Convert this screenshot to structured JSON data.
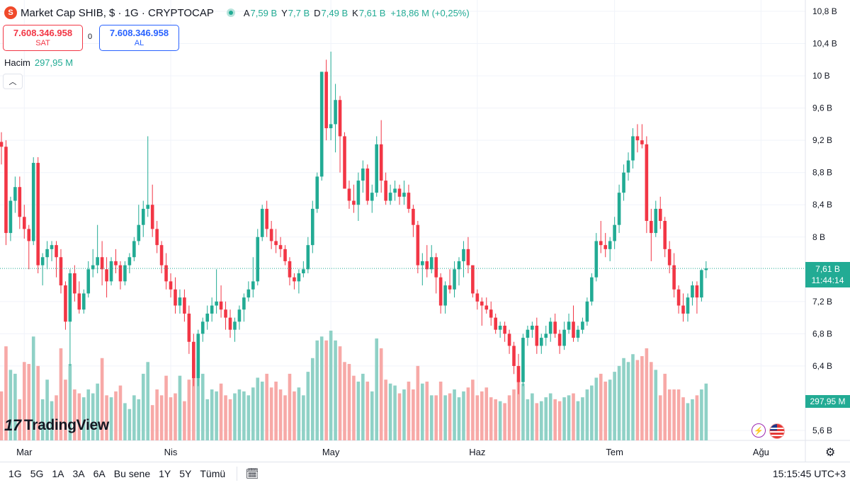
{
  "header": {
    "symbol_icon": "shiba-inu-icon",
    "title": "Market Cap SHIB, $ · 1G · CRYPTOCAP",
    "ohlc": [
      {
        "k": "A",
        "v": "7,59 B"
      },
      {
        "k": "Y",
        "v": "7,7 B"
      },
      {
        "k": "D",
        "v": "7,49 B"
      },
      {
        "k": "K",
        "v": "7,61 B"
      },
      {
        "k": "",
        "v": "+18,86 M (+0,25%)"
      }
    ]
  },
  "trade": {
    "sell_price": "7.608.346.958",
    "sell_label": "SAT",
    "spread": "0",
    "buy_price": "7.608.346.958",
    "buy_label": "AL"
  },
  "volume_legend": {
    "label": "Hacim",
    "value": "297,95 M"
  },
  "price_tag": {
    "price": "7,61 B",
    "countdown": "11:44:14"
  },
  "volume_tag": "297,95 M",
  "logo_text": "TradingView",
  "bottom_bar": {
    "ranges": [
      "1G",
      "5G",
      "1A",
      "3A",
      "6A",
      "Bu sene",
      "1Y",
      "5Y",
      "Tümü"
    ],
    "clock": "15:15:45 UTC+3"
  },
  "colors": {
    "up": "#22ab94",
    "down": "#f23645",
    "up_volume": "#8fd1c6",
    "down_volume": "#f7a9a7",
    "grid": "#f0f3fa"
  },
  "chart_data": {
    "type": "candlestick",
    "y_axis_labels": [
      "10,8 B",
      "10,4 B",
      "10 B",
      "9,6 B",
      "9,2 B",
      "8,8 B",
      "8,4 B",
      "8 B",
      "7,2 B",
      "6,8 B",
      "6,4 B",
      "5,6 B"
    ],
    "y_axis_values": [
      10.8,
      10.4,
      10.0,
      9.6,
      9.2,
      8.8,
      8.4,
      8.0,
      7.2,
      6.8,
      6.4,
      5.6
    ],
    "x_axis_labels": [
      "Mar",
      "Nis",
      "May",
      "Haz",
      "Tem",
      "Ağu"
    ],
    "x_axis_label_index": [
      5,
      37,
      72,
      104,
      134,
      166
    ],
    "last_price": 7.61,
    "candles": [
      {
        "o": 9.18,
        "h": 9.3,
        "l": 8.9,
        "c": 9.12,
        "v": 250
      },
      {
        "o": 9.12,
        "h": 9.2,
        "l": 7.9,
        "c": 8.05,
        "v": 480
      },
      {
        "o": 8.05,
        "h": 8.5,
        "l": 7.95,
        "c": 8.45,
        "v": 360
      },
      {
        "o": 8.45,
        "h": 8.75,
        "l": 8.3,
        "c": 8.62,
        "v": 340
      },
      {
        "o": 8.62,
        "h": 8.75,
        "l": 8.1,
        "c": 8.25,
        "v": 210
      },
      {
        "o": 8.25,
        "h": 8.4,
        "l": 7.98,
        "c": 8.1,
        "v": 400
      },
      {
        "o": 8.1,
        "h": 8.15,
        "l": 7.6,
        "c": 7.95,
        "v": 390
      },
      {
        "o": 7.95,
        "h": 8.99,
        "l": 7.9,
        "c": 8.92,
        "v": 530
      },
      {
        "o": 8.92,
        "h": 8.99,
        "l": 7.55,
        "c": 7.65,
        "v": 380
      },
      {
        "o": 7.65,
        "h": 7.8,
        "l": 7.4,
        "c": 7.75,
        "v": 210
      },
      {
        "o": 7.75,
        "h": 7.95,
        "l": 7.6,
        "c": 7.85,
        "v": 310
      },
      {
        "o": 7.85,
        "h": 7.95,
        "l": 7.7,
        "c": 7.9,
        "v": 200
      },
      {
        "o": 7.9,
        "h": 7.95,
        "l": 7.5,
        "c": 7.75,
        "v": 230
      },
      {
        "o": 7.75,
        "h": 7.85,
        "l": 7.3,
        "c": 7.4,
        "v": 470
      },
      {
        "o": 7.4,
        "h": 7.45,
        "l": 6.85,
        "c": 6.95,
        "v": 310
      },
      {
        "o": 6.95,
        "h": 7.6,
        "l": 6.4,
        "c": 7.55,
        "v": 390
      },
      {
        "o": 7.55,
        "h": 7.65,
        "l": 7.2,
        "c": 7.3,
        "v": 260
      },
      {
        "o": 7.3,
        "h": 7.45,
        "l": 7.05,
        "c": 7.1,
        "v": 240
      },
      {
        "o": 7.1,
        "h": 7.35,
        "l": 7.05,
        "c": 7.3,
        "v": 220
      },
      {
        "o": 7.3,
        "h": 7.7,
        "l": 7.25,
        "c": 7.6,
        "v": 260
      },
      {
        "o": 7.6,
        "h": 7.85,
        "l": 7.5,
        "c": 7.65,
        "v": 240
      },
      {
        "o": 7.65,
        "h": 8.15,
        "l": 7.55,
        "c": 7.75,
        "v": 290
      },
      {
        "o": 7.75,
        "h": 7.95,
        "l": 7.4,
        "c": 7.6,
        "v": 420
      },
      {
        "o": 7.6,
        "h": 7.75,
        "l": 7.25,
        "c": 7.45,
        "v": 230
      },
      {
        "o": 7.45,
        "h": 7.75,
        "l": 7.4,
        "c": 7.7,
        "v": 220
      },
      {
        "o": 7.7,
        "h": 7.85,
        "l": 7.55,
        "c": 7.65,
        "v": 250
      },
      {
        "o": 7.65,
        "h": 7.7,
        "l": 7.35,
        "c": 7.45,
        "v": 280
      },
      {
        "o": 7.45,
        "h": 7.7,
        "l": 7.4,
        "c": 7.65,
        "v": 190
      },
      {
        "o": 7.65,
        "h": 7.8,
        "l": 7.55,
        "c": 7.75,
        "v": 160
      },
      {
        "o": 7.75,
        "h": 8.0,
        "l": 7.7,
        "c": 7.95,
        "v": 230
      },
      {
        "o": 7.95,
        "h": 8.4,
        "l": 7.9,
        "c": 8.15,
        "v": 210
      },
      {
        "o": 8.15,
        "h": 8.45,
        "l": 8.0,
        "c": 8.35,
        "v": 340
      },
      {
        "o": 8.35,
        "h": 9.25,
        "l": 8.25,
        "c": 8.4,
        "v": 400
      },
      {
        "o": 8.4,
        "h": 8.65,
        "l": 8.0,
        "c": 8.1,
        "v": 180
      },
      {
        "o": 8.1,
        "h": 8.2,
        "l": 7.8,
        "c": 7.9,
        "v": 260
      },
      {
        "o": 7.9,
        "h": 7.95,
        "l": 7.55,
        "c": 7.65,
        "v": 230
      },
      {
        "o": 7.65,
        "h": 7.8,
        "l": 7.35,
        "c": 7.45,
        "v": 330
      },
      {
        "o": 7.45,
        "h": 7.55,
        "l": 7.25,
        "c": 7.35,
        "v": 220
      },
      {
        "o": 7.35,
        "h": 7.5,
        "l": 7.05,
        "c": 7.15,
        "v": 240
      },
      {
        "o": 7.15,
        "h": 7.35,
        "l": 7.05,
        "c": 7.25,
        "v": 330
      },
      {
        "o": 7.25,
        "h": 7.35,
        "l": 6.95,
        "c": 7.05,
        "v": 200
      },
      {
        "o": 7.05,
        "h": 7.15,
        "l": 6.55,
        "c": 6.7,
        "v": 310
      },
      {
        "o": 6.7,
        "h": 6.8,
        "l": 6.15,
        "c": 6.25,
        "v": 420
      },
      {
        "o": 6.25,
        "h": 6.85,
        "l": 6.15,
        "c": 6.8,
        "v": 530
      },
      {
        "o": 6.8,
        "h": 7.0,
        "l": 6.7,
        "c": 6.95,
        "v": 340
      },
      {
        "o": 6.95,
        "h": 7.15,
        "l": 6.85,
        "c": 7.05,
        "v": 210
      },
      {
        "o": 7.05,
        "h": 7.25,
        "l": 6.95,
        "c": 7.15,
        "v": 260
      },
      {
        "o": 7.15,
        "h": 7.6,
        "l": 7.05,
        "c": 7.2,
        "v": 250
      },
      {
        "o": 7.2,
        "h": 7.4,
        "l": 7.0,
        "c": 7.1,
        "v": 290
      },
      {
        "o": 7.1,
        "h": 7.2,
        "l": 6.85,
        "c": 7.0,
        "v": 230
      },
      {
        "o": 7.0,
        "h": 7.1,
        "l": 6.75,
        "c": 6.85,
        "v": 210
      },
      {
        "o": 6.85,
        "h": 7.0,
        "l": 6.7,
        "c": 6.95,
        "v": 240
      },
      {
        "o": 6.95,
        "h": 7.15,
        "l": 6.85,
        "c": 7.1,
        "v": 260
      },
      {
        "o": 7.1,
        "h": 7.3,
        "l": 6.95,
        "c": 7.25,
        "v": 250
      },
      {
        "o": 7.25,
        "h": 7.45,
        "l": 7.2,
        "c": 7.35,
        "v": 230
      },
      {
        "o": 7.35,
        "h": 7.75,
        "l": 7.25,
        "c": 7.45,
        "v": 270
      },
      {
        "o": 7.45,
        "h": 8.1,
        "l": 7.4,
        "c": 8.0,
        "v": 320
      },
      {
        "o": 8.0,
        "h": 8.4,
        "l": 7.95,
        "c": 8.35,
        "v": 300
      },
      {
        "o": 8.35,
        "h": 8.45,
        "l": 8.0,
        "c": 8.1,
        "v": 340
      },
      {
        "o": 8.1,
        "h": 8.2,
        "l": 7.85,
        "c": 7.95,
        "v": 270
      },
      {
        "o": 7.95,
        "h": 8.1,
        "l": 7.8,
        "c": 7.9,
        "v": 300
      },
      {
        "o": 7.9,
        "h": 8.0,
        "l": 7.75,
        "c": 7.85,
        "v": 260
      },
      {
        "o": 7.85,
        "h": 7.9,
        "l": 7.65,
        "c": 7.7,
        "v": 230
      },
      {
        "o": 7.7,
        "h": 7.75,
        "l": 7.4,
        "c": 7.5,
        "v": 340
      },
      {
        "o": 7.5,
        "h": 7.55,
        "l": 7.35,
        "c": 7.45,
        "v": 250
      },
      {
        "o": 7.45,
        "h": 7.6,
        "l": 7.3,
        "c": 7.55,
        "v": 270
      },
      {
        "o": 7.55,
        "h": 7.7,
        "l": 7.5,
        "c": 7.6,
        "v": 230
      },
      {
        "o": 7.6,
        "h": 8.0,
        "l": 7.55,
        "c": 7.9,
        "v": 350
      },
      {
        "o": 7.9,
        "h": 8.45,
        "l": 7.8,
        "c": 8.35,
        "v": 420
      },
      {
        "o": 8.35,
        "h": 8.8,
        "l": 8.3,
        "c": 8.75,
        "v": 510
      },
      {
        "o": 8.75,
        "h": 10.05,
        "l": 8.7,
        "c": 10.05,
        "v": 530
      },
      {
        "o": 10.05,
        "h": 10.2,
        "l": 9.2,
        "c": 9.35,
        "v": 510
      },
      {
        "o": 9.35,
        "h": 10.3,
        "l": 9.2,
        "c": 9.4,
        "v": 560
      },
      {
        "o": 9.4,
        "h": 9.9,
        "l": 9.05,
        "c": 9.7,
        "v": 510
      },
      {
        "o": 9.7,
        "h": 9.75,
        "l": 8.8,
        "c": 9.25,
        "v": 480
      },
      {
        "o": 9.25,
        "h": 9.3,
        "l": 8.6,
        "c": 8.6,
        "v": 400
      },
      {
        "o": 8.6,
        "h": 8.7,
        "l": 8.35,
        "c": 8.45,
        "v": 390
      },
      {
        "o": 8.45,
        "h": 8.65,
        "l": 8.3,
        "c": 8.4,
        "v": 330
      },
      {
        "o": 8.4,
        "h": 8.8,
        "l": 8.2,
        "c": 8.7,
        "v": 300
      },
      {
        "o": 8.7,
        "h": 8.95,
        "l": 8.55,
        "c": 8.85,
        "v": 340
      },
      {
        "o": 8.85,
        "h": 8.9,
        "l": 8.4,
        "c": 8.45,
        "v": 300
      },
      {
        "o": 8.45,
        "h": 8.65,
        "l": 8.3,
        "c": 8.55,
        "v": 250
      },
      {
        "o": 8.55,
        "h": 9.25,
        "l": 8.5,
        "c": 9.15,
        "v": 520
      },
      {
        "o": 9.15,
        "h": 9.45,
        "l": 8.55,
        "c": 8.7,
        "v": 470
      },
      {
        "o": 8.7,
        "h": 8.8,
        "l": 8.4,
        "c": 8.45,
        "v": 310
      },
      {
        "o": 8.45,
        "h": 8.65,
        "l": 8.4,
        "c": 8.55,
        "v": 290
      },
      {
        "o": 8.55,
        "h": 8.7,
        "l": 8.45,
        "c": 8.6,
        "v": 280
      },
      {
        "o": 8.6,
        "h": 8.65,
        "l": 8.4,
        "c": 8.5,
        "v": 240
      },
      {
        "o": 8.5,
        "h": 8.7,
        "l": 8.4,
        "c": 8.55,
        "v": 260
      },
      {
        "o": 8.55,
        "h": 8.65,
        "l": 8.3,
        "c": 8.35,
        "v": 300
      },
      {
        "o": 8.35,
        "h": 8.4,
        "l": 8.0,
        "c": 8.15,
        "v": 260
      },
      {
        "o": 8.15,
        "h": 8.2,
        "l": 7.55,
        "c": 7.65,
        "v": 380
      },
      {
        "o": 7.65,
        "h": 7.8,
        "l": 7.4,
        "c": 7.7,
        "v": 290
      },
      {
        "o": 7.7,
        "h": 7.9,
        "l": 7.5,
        "c": 7.6,
        "v": 300
      },
      {
        "o": 7.6,
        "h": 7.9,
        "l": 7.55,
        "c": 7.75,
        "v": 230
      },
      {
        "o": 7.75,
        "h": 7.8,
        "l": 7.3,
        "c": 7.5,
        "v": 230
      },
      {
        "o": 7.5,
        "h": 7.55,
        "l": 7.05,
        "c": 7.15,
        "v": 300
      },
      {
        "o": 7.15,
        "h": 7.45,
        "l": 7.05,
        "c": 7.4,
        "v": 230
      },
      {
        "o": 7.4,
        "h": 7.6,
        "l": 7.3,
        "c": 7.35,
        "v": 240
      },
      {
        "o": 7.35,
        "h": 7.7,
        "l": 7.25,
        "c": 7.6,
        "v": 260
      },
      {
        "o": 7.6,
        "h": 7.75,
        "l": 7.4,
        "c": 7.7,
        "v": 220
      },
      {
        "o": 7.7,
        "h": 7.95,
        "l": 7.5,
        "c": 7.85,
        "v": 250
      },
      {
        "o": 7.85,
        "h": 8.0,
        "l": 7.55,
        "c": 7.65,
        "v": 270
      },
      {
        "o": 7.65,
        "h": 7.65,
        "l": 7.25,
        "c": 7.3,
        "v": 310
      },
      {
        "o": 7.3,
        "h": 7.35,
        "l": 7.1,
        "c": 7.2,
        "v": 230
      },
      {
        "o": 7.2,
        "h": 7.25,
        "l": 6.9,
        "c": 7.15,
        "v": 250
      },
      {
        "o": 7.15,
        "h": 7.25,
        "l": 7.05,
        "c": 7.1,
        "v": 270
      },
      {
        "o": 7.1,
        "h": 7.2,
        "l": 6.9,
        "c": 7.0,
        "v": 220
      },
      {
        "o": 7.0,
        "h": 7.05,
        "l": 6.8,
        "c": 6.85,
        "v": 210
      },
      {
        "o": 6.85,
        "h": 6.95,
        "l": 6.75,
        "c": 6.9,
        "v": 200
      },
      {
        "o": 6.9,
        "h": 6.95,
        "l": 6.7,
        "c": 6.8,
        "v": 190
      },
      {
        "o": 6.8,
        "h": 6.85,
        "l": 6.55,
        "c": 6.65,
        "v": 230
      },
      {
        "o": 6.65,
        "h": 6.7,
        "l": 6.3,
        "c": 6.4,
        "v": 260
      },
      {
        "o": 6.4,
        "h": 6.55,
        "l": 6.05,
        "c": 6.2,
        "v": 310
      },
      {
        "o": 6.2,
        "h": 6.8,
        "l": 6.15,
        "c": 6.75,
        "v": 290
      },
      {
        "o": 6.75,
        "h": 6.9,
        "l": 6.65,
        "c": 6.85,
        "v": 210
      },
      {
        "o": 6.85,
        "h": 6.95,
        "l": 6.75,
        "c": 6.9,
        "v": 240
      },
      {
        "o": 6.9,
        "h": 7.0,
        "l": 6.55,
        "c": 6.65,
        "v": 190
      },
      {
        "o": 6.65,
        "h": 6.8,
        "l": 6.55,
        "c": 6.75,
        "v": 200
      },
      {
        "o": 6.75,
        "h": 6.9,
        "l": 6.65,
        "c": 6.8,
        "v": 220
      },
      {
        "o": 6.8,
        "h": 7.0,
        "l": 6.7,
        "c": 6.95,
        "v": 240
      },
      {
        "o": 6.95,
        "h": 7.05,
        "l": 6.75,
        "c": 6.8,
        "v": 210
      },
      {
        "o": 6.8,
        "h": 6.85,
        "l": 6.55,
        "c": 6.65,
        "v": 200
      },
      {
        "o": 6.65,
        "h": 6.95,
        "l": 6.6,
        "c": 6.85,
        "v": 220
      },
      {
        "o": 6.85,
        "h": 7.05,
        "l": 6.8,
        "c": 6.95,
        "v": 230
      },
      {
        "o": 6.95,
        "h": 7.15,
        "l": 6.7,
        "c": 6.75,
        "v": 240
      },
      {
        "o": 6.75,
        "h": 6.9,
        "l": 6.7,
        "c": 6.85,
        "v": 200
      },
      {
        "o": 6.85,
        "h": 7.0,
        "l": 6.8,
        "c": 6.95,
        "v": 220
      },
      {
        "o": 6.95,
        "h": 7.25,
        "l": 6.9,
        "c": 7.2,
        "v": 260
      },
      {
        "o": 7.2,
        "h": 7.55,
        "l": 7.15,
        "c": 7.5,
        "v": 280
      },
      {
        "o": 7.5,
        "h": 8.05,
        "l": 7.45,
        "c": 7.95,
        "v": 320
      },
      {
        "o": 7.95,
        "h": 8.2,
        "l": 7.8,
        "c": 7.9,
        "v": 340
      },
      {
        "o": 7.9,
        "h": 8.05,
        "l": 7.75,
        "c": 7.85,
        "v": 300
      },
      {
        "o": 7.85,
        "h": 8.0,
        "l": 7.7,
        "c": 7.95,
        "v": 310
      },
      {
        "o": 7.95,
        "h": 8.25,
        "l": 7.85,
        "c": 8.15,
        "v": 350
      },
      {
        "o": 8.15,
        "h": 8.65,
        "l": 8.05,
        "c": 8.55,
        "v": 380
      },
      {
        "o": 8.55,
        "h": 8.9,
        "l": 8.45,
        "c": 8.8,
        "v": 420
      },
      {
        "o": 8.8,
        "h": 9.05,
        "l": 8.7,
        "c": 8.95,
        "v": 400
      },
      {
        "o": 8.95,
        "h": 9.35,
        "l": 8.85,
        "c": 9.25,
        "v": 440
      },
      {
        "o": 9.25,
        "h": 9.4,
        "l": 9.05,
        "c": 9.2,
        "v": 410
      },
      {
        "o": 9.2,
        "h": 9.4,
        "l": 9.1,
        "c": 9.15,
        "v": 430
      },
      {
        "o": 9.15,
        "h": 9.25,
        "l": 8.05,
        "c": 8.2,
        "v": 470
      },
      {
        "o": 8.2,
        "h": 8.35,
        "l": 7.7,
        "c": 8.05,
        "v": 400
      },
      {
        "o": 8.05,
        "h": 8.45,
        "l": 8.0,
        "c": 8.35,
        "v": 360
      },
      {
        "o": 8.35,
        "h": 8.5,
        "l": 8.1,
        "c": 8.2,
        "v": 230
      },
      {
        "o": 8.2,
        "h": 8.25,
        "l": 7.75,
        "c": 7.85,
        "v": 340
      },
      {
        "o": 7.85,
        "h": 7.95,
        "l": 7.55,
        "c": 7.65,
        "v": 260
      },
      {
        "o": 7.65,
        "h": 7.8,
        "l": 7.25,
        "c": 7.35,
        "v": 260
      },
      {
        "o": 7.35,
        "h": 7.4,
        "l": 7.05,
        "c": 7.15,
        "v": 260
      },
      {
        "o": 7.15,
        "h": 7.3,
        "l": 6.95,
        "c": 7.05,
        "v": 220
      },
      {
        "o": 7.05,
        "h": 7.3,
        "l": 6.95,
        "c": 7.25,
        "v": 190
      },
      {
        "o": 7.25,
        "h": 7.45,
        "l": 7.15,
        "c": 7.4,
        "v": 210
      },
      {
        "o": 7.4,
        "h": 7.45,
        "l": 7.05,
        "c": 7.25,
        "v": 230
      },
      {
        "o": 7.25,
        "h": 7.6,
        "l": 7.2,
        "c": 7.59,
        "v": 260
      },
      {
        "o": 7.59,
        "h": 7.7,
        "l": 7.49,
        "c": 7.61,
        "v": 290
      }
    ]
  }
}
